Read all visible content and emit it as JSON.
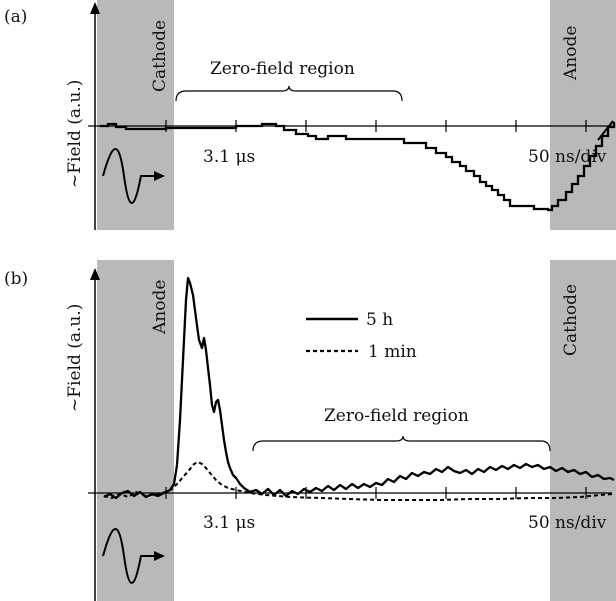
{
  "chart_data": [
    {
      "type": "line",
      "panel_label": "(a)",
      "ylabel": "~Field (a.u.)",
      "left_electrode": "Cathode",
      "right_electrode": "Anode",
      "region_label": "Zero-field region",
      "time_label_left": "3.1 μs",
      "time_label_right": "50 ns/div",
      "legend": [],
      "series": [
        {
          "x": [
            0.03,
            0.06,
            0.09,
            0.12,
            0.16,
            0.2,
            0.24,
            0.28,
            0.32,
            0.36,
            0.4,
            0.44,
            0.48,
            0.52,
            0.56,
            0.6,
            0.64,
            0.68,
            0.72,
            0.76,
            0.8,
            0.84,
            0.88,
            0.92,
            0.95,
            0.97,
            1.0
          ],
          "y": [
            0,
            0.01,
            0,
            -0.01,
            0,
            0,
            0.01,
            0,
            -0.03,
            -0.03,
            -0.03,
            -0.04,
            -0.05,
            -0.05,
            -0.05,
            -0.1,
            -0.2,
            -0.3,
            -0.42,
            -0.52,
            -0.55,
            -0.58,
            -0.55,
            -0.42,
            -0.25,
            -0.12,
            0.0
          ]
        }
      ]
    },
    {
      "type": "line",
      "panel_label": "(b)",
      "ylabel": "~Field (a.u.)",
      "left_electrode": "Anode",
      "right_electrode": "Cathode",
      "region_label": "Zero-field region",
      "time_label_left": "3.1 μs",
      "time_label_right": "50 ns/div",
      "legend": [
        "5 h",
        "1 min"
      ],
      "series": [
        {
          "name": "5 h",
          "x": [
            0.0,
            0.04,
            0.08,
            0.12,
            0.15,
            0.17,
            0.18,
            0.19,
            0.2,
            0.21,
            0.22,
            0.23,
            0.24,
            0.25,
            0.26,
            0.27,
            0.28,
            0.29,
            0.3,
            0.32,
            0.34,
            0.38,
            0.42,
            0.46,
            0.5,
            0.54,
            0.58,
            0.62,
            0.66,
            0.7,
            0.74,
            0.78,
            0.82,
            0.86,
            0.9,
            0.94,
            0.98,
            1.0
          ],
          "y": [
            -0.02,
            0.01,
            -0.01,
            0.02,
            0.05,
            0.35,
            0.8,
            1.0,
            0.95,
            0.82,
            0.62,
            0.7,
            0.5,
            0.38,
            0.5,
            0.32,
            0.2,
            0.12,
            0.05,
            0.0,
            -0.02,
            0.0,
            -0.03,
            0.0,
            0.01,
            0.02,
            0.05,
            0.07,
            0.09,
            0.11,
            0.12,
            0.1,
            0.12,
            0.13,
            0.12,
            0.1,
            0.07,
            0.05
          ]
        },
        {
          "name": "1 min",
          "x": [
            0.0,
            0.05,
            0.1,
            0.15,
            0.18,
            0.2,
            0.22,
            0.25,
            0.28,
            0.32,
            0.4,
            0.5,
            0.6,
            0.7,
            0.8,
            0.9,
            0.96,
            1.0
          ],
          "y": [
            -0.03,
            0.0,
            -0.02,
            0.02,
            0.05,
            0.2,
            0.24,
            0.15,
            0.06,
            0.0,
            -0.04,
            -0.06,
            -0.08,
            -0.08,
            -0.06,
            -0.04,
            -0.02,
            0.0
          ]
        }
      ]
    }
  ]
}
